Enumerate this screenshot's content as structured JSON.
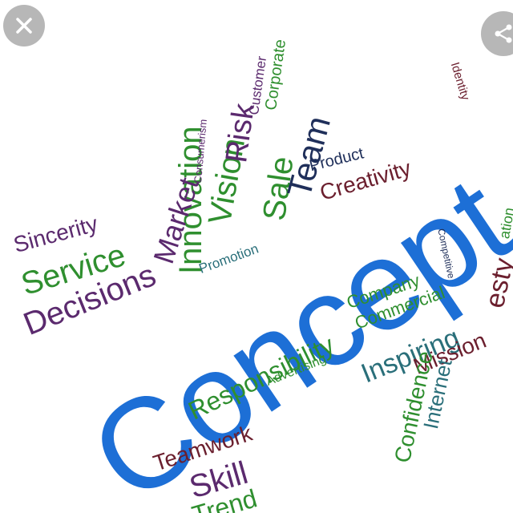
{
  "controls": {
    "close_icon": "close-icon",
    "share_icon": "share-icon",
    "button_color": "#b7b7b7"
  },
  "palette": {
    "blue": "#1d6fd6",
    "green": "#2f8f2f",
    "purple": "#5b2a6e",
    "maroon": "#6b1f2e",
    "navy": "#1f2f5a",
    "teal": "#2a6f7a"
  },
  "words": {
    "concept": "Concept",
    "sincerity": "Sincerity",
    "service": "Service",
    "decisions": "Decisions",
    "innovation": "Innovation",
    "market": "Market",
    "consumerism": "Consumerism",
    "vision": "Vision",
    "risk": "Risk",
    "sale": "Sale",
    "customer": "Customer",
    "corporate": "Corporate",
    "team": "Team",
    "promotion": "Promotion",
    "product": "Product",
    "creativity": "Creativity",
    "identity": "Identity",
    "company": "Company",
    "commercial": "Commercial",
    "competitive": "Competitive",
    "inspiring": "Inspiring",
    "mission": "Mission",
    "responsibility": "Responsibility",
    "advertising": "Advertising",
    "confidence": "Confidence",
    "internet": "Internet",
    "teamwork": "Teamwork",
    "skill": "Skill",
    "trend": "Trend",
    "honesty": "esty",
    "motivation": "ation"
  }
}
